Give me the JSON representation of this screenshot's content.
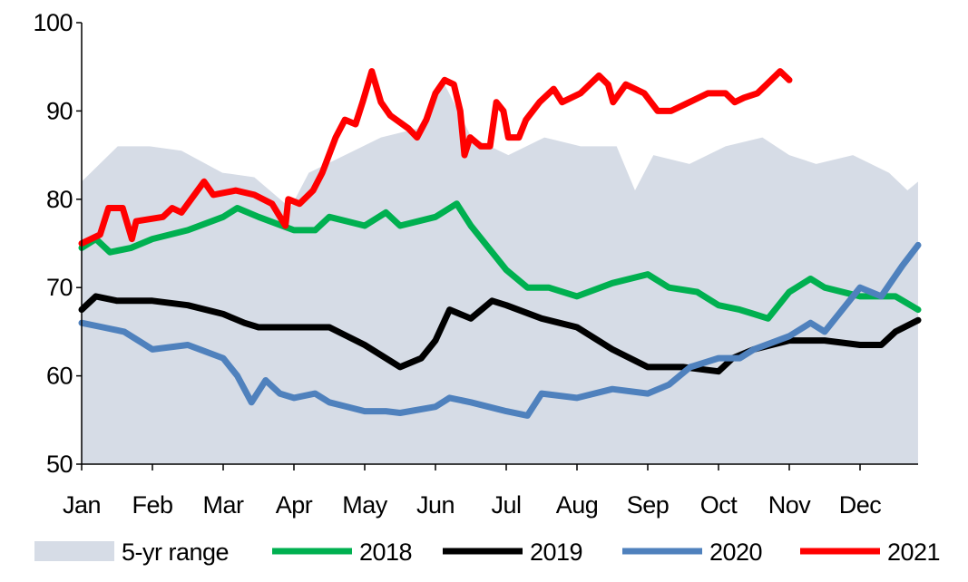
{
  "chart_data": {
    "type": "line",
    "title": "",
    "xlabel": "",
    "ylabel": "",
    "ylim": [
      50,
      100
    ],
    "yticks": [
      "50",
      "60",
      "70",
      "80",
      "90",
      "100"
    ],
    "xlim_months": [
      0,
      11.82
    ],
    "xticks": [
      "Jan",
      "Feb",
      "Mar",
      "Apr",
      "May",
      "Jun",
      "Jul",
      "Aug",
      "Sep",
      "Oct",
      "Nov",
      "Dec"
    ],
    "grid": false,
    "legend": "bottom",
    "range": {
      "name": "5-yr range",
      "color": "#d6dce6",
      "x": [
        0,
        0.51,
        0.96,
        1.41,
        1.99,
        2.44,
        2.95,
        3.21,
        3.72,
        4.23,
        4.74,
        5.13,
        5.51,
        6.03,
        6.54,
        7.05,
        7.56,
        7.82,
        8.08,
        8.59,
        9.1,
        9.62,
        10,
        10.38,
        10.9,
        11.41,
        11.67,
        11.82
      ],
      "upper": [
        82,
        86,
        86,
        85.5,
        83,
        82.5,
        79,
        83,
        85,
        87,
        88,
        93,
        87,
        85,
        87,
        86,
        86,
        81,
        85,
        84,
        86,
        87,
        85,
        84,
        85,
        83,
        81,
        82
      ],
      "lower": [
        50,
        50,
        50,
        50,
        50,
        50,
        50,
        50,
        50,
        50,
        50,
        50,
        50,
        50,
        50,
        50,
        50,
        50,
        50,
        50,
        50,
        50,
        50,
        50,
        50,
        50,
        50,
        50
      ]
    },
    "series": [
      {
        "name": "2018",
        "color": "#00b050",
        "x": [
          0,
          0.2,
          0.4,
          0.7,
          1,
          1.5,
          2,
          2.2,
          2.5,
          3,
          3.3,
          3.5,
          4,
          4.3,
          4.5,
          5,
          5.3,
          5.5,
          5.8,
          6,
          6.3,
          6.6,
          7,
          7.5,
          8,
          8.3,
          8.7,
          9,
          9.3,
          9.5,
          9.7,
          10,
          10.3,
          10.5,
          11,
          11.5,
          11.82
        ],
        "values": [
          74.5,
          75.5,
          74,
          74.5,
          75.5,
          76.5,
          78,
          79,
          78,
          76.5,
          76.5,
          78,
          77,
          78.5,
          77,
          78,
          79.5,
          77,
          74,
          72,
          70,
          70,
          69,
          70.5,
          71.5,
          70,
          69.5,
          68,
          67.5,
          67,
          66.5,
          69.5,
          71,
          70,
          69,
          69,
          67.5
        ]
      },
      {
        "name": "2019",
        "color": "#000000",
        "x": [
          0,
          0.2,
          0.5,
          1,
          1.5,
          2,
          2.3,
          2.5,
          3,
          3.3,
          3.5,
          4,
          4.5,
          4.8,
          5,
          5.2,
          5.5,
          5.8,
          6,
          6.5,
          7,
          7.3,
          7.5,
          8,
          8.5,
          9,
          9.2,
          9.5,
          10,
          10.5,
          11,
          11.3,
          11.5,
          11.82
        ],
        "values": [
          67.5,
          69,
          68.5,
          68.5,
          68,
          67,
          66,
          65.5,
          65.5,
          65.5,
          65.5,
          63.5,
          61,
          62,
          64,
          67.5,
          66.5,
          68.5,
          68,
          66.5,
          65.5,
          64,
          63,
          61,
          61,
          60.5,
          62,
          63,
          64,
          64,
          63.5,
          63.5,
          65,
          66.3
        ]
      },
      {
        "name": "2020",
        "color": "#4f81bd",
        "x": [
          0,
          0.3,
          0.6,
          0.8,
          1,
          1.5,
          2,
          2.2,
          2.4,
          2.6,
          2.8,
          3,
          3.3,
          3.5,
          4,
          4.3,
          4.5,
          5,
          5.2,
          5.5,
          6,
          6.3,
          6.5,
          7,
          7.5,
          8,
          8.3,
          8.6,
          9,
          9.3,
          9.5,
          10,
          10.3,
          10.5,
          10.8,
          11,
          11.3,
          11.6,
          11.82
        ],
        "values": [
          66,
          65.5,
          65,
          64,
          63,
          63.5,
          62,
          60,
          57,
          59.5,
          58,
          57.5,
          58,
          57,
          56,
          56,
          55.8,
          56.5,
          57.5,
          57,
          56,
          55.5,
          58,
          57.5,
          58.5,
          58,
          59,
          61,
          62,
          62,
          63,
          64.5,
          66,
          65,
          68,
          70,
          69,
          72.5,
          74.8
        ]
      },
      {
        "name": "2021",
        "color": "#ff0000",
        "x": [
          0,
          0.26,
          0.38,
          0.58,
          0.71,
          0.77,
          1.15,
          1.28,
          1.41,
          1.73,
          1.86,
          2.18,
          2.44,
          2.69,
          2.88,
          2.92,
          3.08,
          3.27,
          3.4,
          3.59,
          3.72,
          3.87,
          3.97,
          4.1,
          4.23,
          4.36,
          4.62,
          4.74,
          4.87,
          5,
          5.13,
          5.26,
          5.35,
          5.41,
          5.49,
          5.64,
          5.77,
          5.86,
          5.96,
          6.03,
          6.18,
          6.28,
          6.47,
          6.67,
          6.79,
          7.05,
          7.31,
          7.44,
          7.51,
          7.69,
          7.95,
          8.14,
          8.33,
          8.59,
          8.85,
          9.1,
          9.23,
          9.36,
          9.55,
          9.68,
          9.87,
          10
        ],
        "values": [
          75,
          76,
          79,
          79,
          75.5,
          77.5,
          78,
          79,
          78.5,
          82,
          80.5,
          81,
          80.5,
          79.5,
          77,
          80,
          79.5,
          81,
          83,
          87,
          89,
          88.5,
          91,
          94.5,
          91,
          89.5,
          88,
          87,
          89,
          92,
          93.5,
          93,
          90,
          85,
          87,
          86,
          86,
          91,
          90,
          87,
          87,
          89,
          91,
          92.5,
          91,
          92,
          94,
          93,
          91,
          93,
          92,
          90,
          90,
          91,
          92,
          92,
          91,
          91.5,
          92,
          93,
          94.5,
          93.5
        ]
      }
    ]
  }
}
